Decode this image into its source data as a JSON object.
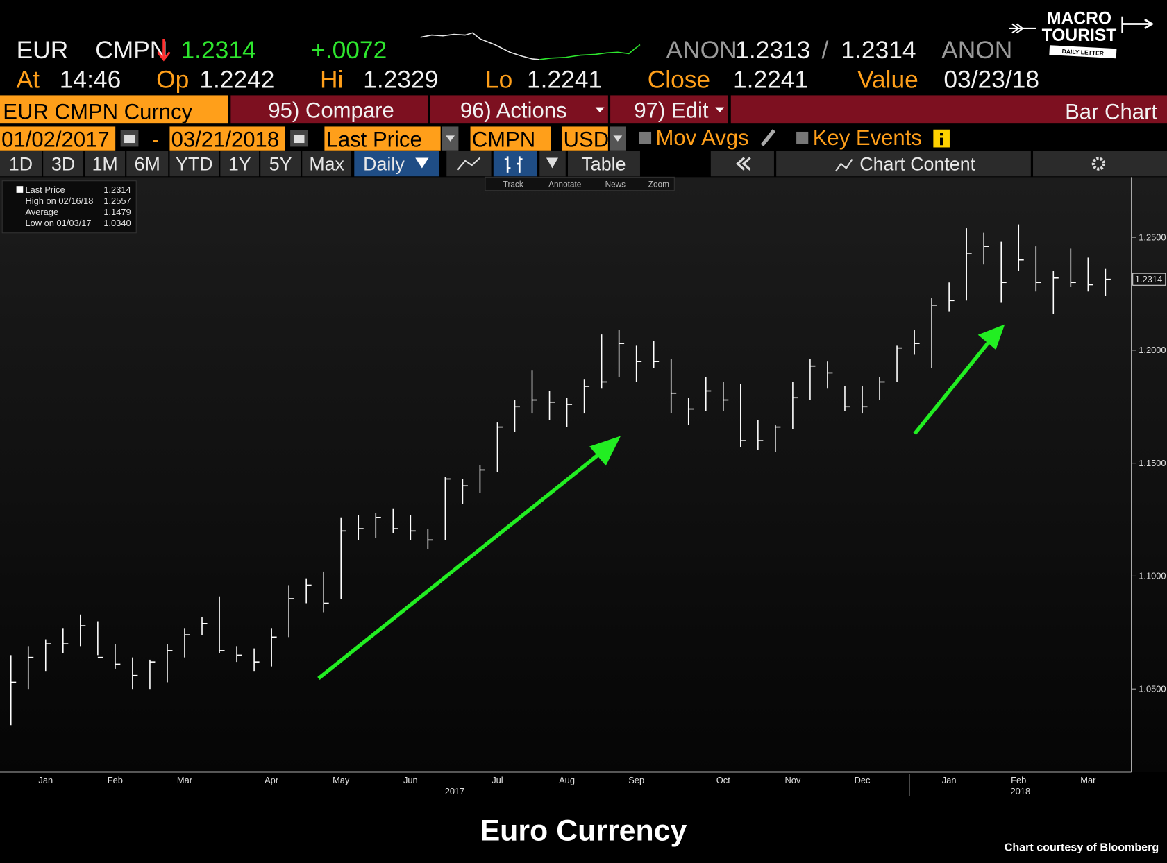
{
  "header": {
    "ticker": "EUR",
    "source": "CMPN",
    "last": "1.2314",
    "change": "+.0072",
    "bid_source": "ANON",
    "bid": "1.2313",
    "separator": "/",
    "ask": "1.2314",
    "ask_source": "ANON",
    "at_label": "At",
    "time": "14:46",
    "open_label": "Op",
    "open": "1.2242",
    "high_label": "Hi",
    "high": "1.2329",
    "low_label": "Lo",
    "low": "1.2241",
    "close_label": "Close",
    "close": "1.2241",
    "value_label": "Value",
    "value_date": "03/23/18"
  },
  "logo": {
    "line1": "MACRO",
    "line2": "TOURIST",
    "tagline": "DAILY LETTER"
  },
  "toolbar": {
    "security": "EUR CMPN Curncy",
    "buttons": [
      "95) Compare",
      "96) Actions",
      "97) Edit"
    ],
    "chart_kind": "Bar Chart",
    "start_date": "01/02/2017",
    "dash": "-",
    "end_date": "03/21/2018",
    "field": "Last Price",
    "pricing_source": "CMPN",
    "currency": "USD",
    "mov_avgs": "Mov Avgs",
    "key_events": "Key Events",
    "periods": [
      "1D",
      "3D",
      "1M",
      "6M",
      "YTD",
      "1Y",
      "5Y",
      "Max"
    ],
    "frequency": "Daily",
    "table": "Table",
    "chart_content": "Chart Content",
    "tools": [
      "Track",
      "Annotate",
      "News",
      "Zoom"
    ]
  },
  "chart_data": {
    "type": "ohlc",
    "color": "#ffffff",
    "legend_box": [
      {
        "label": "Last Price",
        "value": "1.2314"
      },
      {
        "label": "High on 02/16/18",
        "value": "1.2557"
      },
      {
        "label": "Average",
        "value": "1.1479"
      },
      {
        "label": "Low on 01/03/17",
        "value": "1.0340"
      }
    ],
    "categories": [
      null,
      null,
      "Jan",
      null,
      null,
      null,
      "Feb",
      null,
      null,
      null,
      "Mar",
      null,
      null,
      null,
      null,
      "Apr",
      null,
      null,
      null,
      "May",
      null,
      null,
      null,
      "Jun",
      null,
      null,
      null,
      null,
      "Jul",
      null,
      null,
      null,
      "Aug",
      null,
      null,
      null,
      "Sep",
      null,
      null,
      null,
      null,
      "Oct",
      null,
      null,
      null,
      "Nov",
      null,
      null,
      null,
      "Dec",
      null,
      null,
      null,
      null,
      "Jan",
      null,
      null,
      null,
      "Feb",
      null,
      null,
      null,
      "Mar",
      null
    ],
    "years": [
      "2017",
      "2018"
    ],
    "high": [
      1.065,
      1.069,
      1.072,
      1.077,
      1.083,
      1.08,
      1.07,
      1.064,
      1.063,
      1.07,
      1.077,
      1.082,
      1.091,
      1.069,
      1.068,
      1.077,
      1.096,
      1.099,
      1.102,
      1.126,
      1.127,
      1.128,
      1.13,
      1.127,
      1.121,
      1.144,
      1.143,
      1.149,
      1.168,
      1.178,
      1.191,
      1.182,
      1.179,
      1.187,
      1.207,
      1.209,
      1.202,
      1.204,
      1.196,
      1.179,
      1.188,
      1.186,
      1.185,
      1.169,
      1.167,
      1.186,
      1.196,
      1.195,
      1.184,
      1.184,
      1.188,
      1.202,
      1.209,
      1.223,
      1.23,
      1.254,
      1.252,
      1.248,
      1.2557,
      1.246,
      1.235,
      1.245,
      1.241,
      1.236
    ],
    "low": [
      1.034,
      1.05,
      1.058,
      1.066,
      1.069,
      1.065,
      1.059,
      1.05,
      1.05,
      1.053,
      1.064,
      1.074,
      1.066,
      1.062,
      1.058,
      1.06,
      1.073,
      1.088,
      1.084,
      1.09,
      1.116,
      1.117,
      1.119,
      1.116,
      1.112,
      1.116,
      1.132,
      1.137,
      1.146,
      1.164,
      1.172,
      1.169,
      1.166,
      1.172,
      1.183,
      1.188,
      1.186,
      1.192,
      1.172,
      1.167,
      1.173,
      1.173,
      1.157,
      1.156,
      1.155,
      1.165,
      1.178,
      1.183,
      1.173,
      1.172,
      1.178,
      1.186,
      1.198,
      1.192,
      1.217,
      1.222,
      1.238,
      1.221,
      1.235,
      1.226,
      1.216,
      1.228,
      1.226,
      1.224
    ],
    "close": [
      1.053,
      1.064,
      1.07,
      1.07,
      1.078,
      1.064,
      1.061,
      1.056,
      1.062,
      1.067,
      1.074,
      1.079,
      1.067,
      1.065,
      1.062,
      1.073,
      1.09,
      1.096,
      1.088,
      1.12,
      1.121,
      1.126,
      1.121,
      1.12,
      1.116,
      1.143,
      1.14,
      1.147,
      1.166,
      1.175,
      1.178,
      1.177,
      1.176,
      1.184,
      1.186,
      1.203,
      1.195,
      1.195,
      1.181,
      1.174,
      1.182,
      1.178,
      1.16,
      1.16,
      1.166,
      1.179,
      1.193,
      1.19,
      1.175,
      1.175,
      1.186,
      1.201,
      1.203,
      1.22,
      1.222,
      1.243,
      1.246,
      1.23,
      1.24,
      1.23,
      1.232,
      1.23,
      1.229,
      1.2314
    ],
    "last_price": 1.2314,
    "ylim": [
      1.0132,
      1.276
    ],
    "yticks": [
      {
        "value": 1.05,
        "label": "1.0500"
      },
      {
        "value": 1.1,
        "label": "1.1000"
      },
      {
        "value": 1.15,
        "label": "1.1500"
      },
      {
        "value": 1.2,
        "label": "1.2000"
      },
      {
        "value": 1.25,
        "label": "1.2500"
      }
    ]
  },
  "footer": {
    "title": "Euro Currency",
    "credit": "Chart courtesy of Bloomberg"
  }
}
